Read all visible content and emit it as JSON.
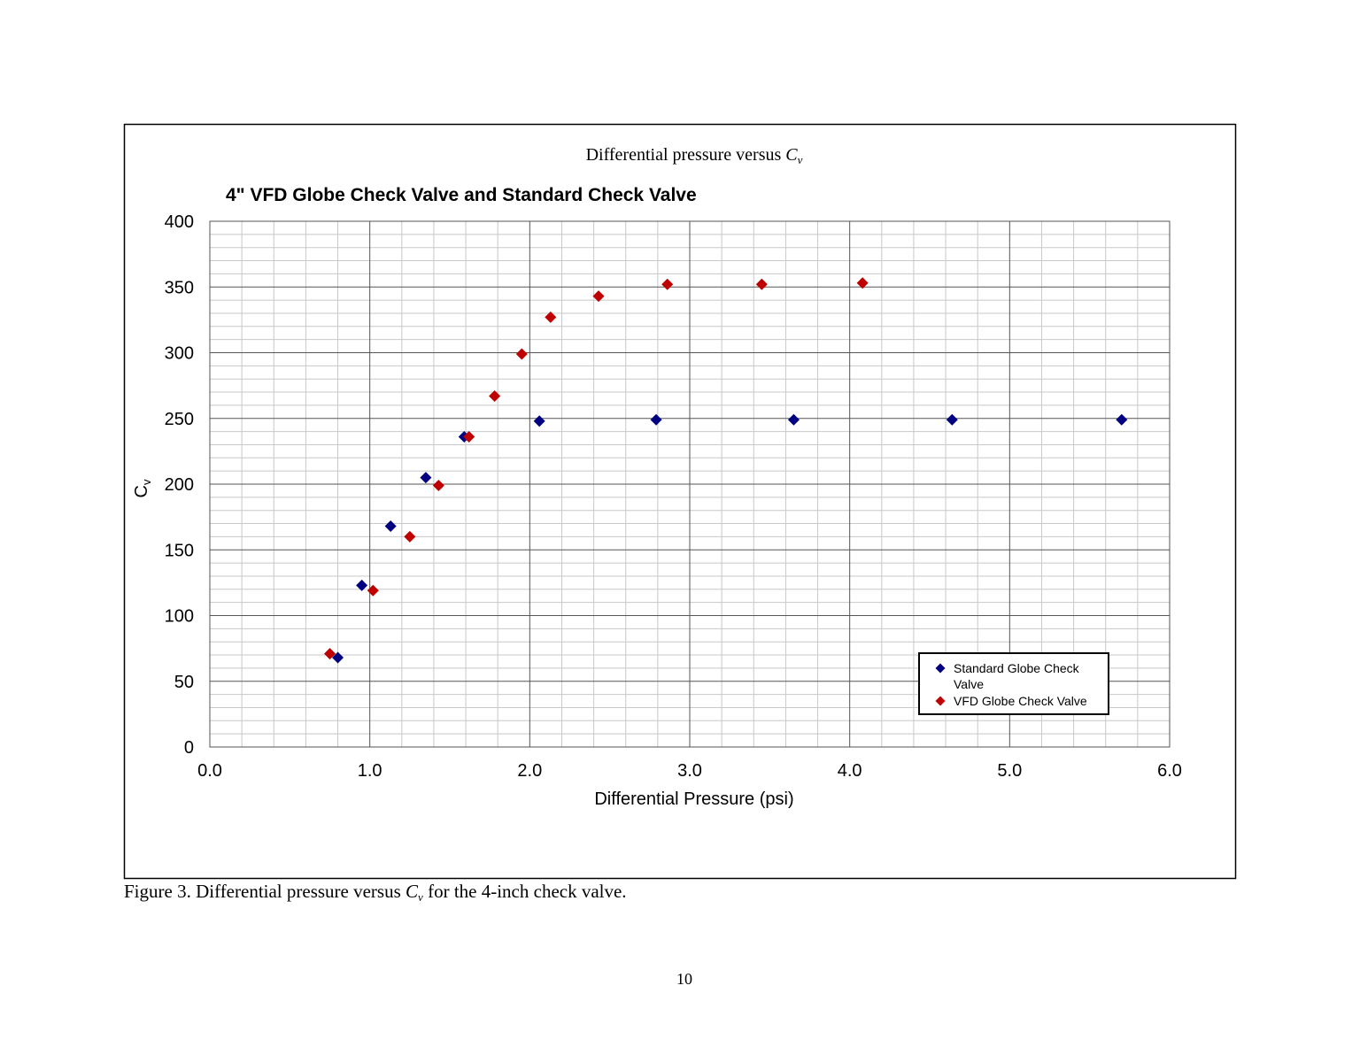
{
  "header": {
    "text": "Differential pressure versus ",
    "symbol": "C",
    "subscript": "v"
  },
  "chart_data": {
    "type": "scatter",
    "title": "4\" VFD Globe Check Valve and Standard Check Valve",
    "xlabel": "Differential Pressure (psi)",
    "ylabel": "C",
    "ylabel_sub": "v",
    "xlim": [
      0,
      6
    ],
    "ylim": [
      0,
      400
    ],
    "xticks": [
      {
        "value": 0,
        "label": "0.0"
      },
      {
        "value": 1,
        "label": "1.0"
      },
      {
        "value": 2,
        "label": "2.0"
      },
      {
        "value": 3,
        "label": "3.0"
      },
      {
        "value": 4,
        "label": "4.0"
      },
      {
        "value": 5,
        "label": "5.0"
      },
      {
        "value": 6,
        "label": "6.0"
      }
    ],
    "yticks": [
      0,
      50,
      100,
      150,
      200,
      250,
      300,
      350,
      400
    ],
    "grid": true,
    "legend": "lower right",
    "series": [
      {
        "name": "Standard Globe Check Valve",
        "color": "#000080",
        "x": [
          0.8,
          0.95,
          1.13,
          1.35,
          1.59,
          2.06,
          2.79,
          3.65,
          4.64,
          5.7
        ],
        "values": [
          68,
          123,
          168,
          205,
          236,
          248,
          249,
          249,
          249,
          249
        ]
      },
      {
        "name": "VFD Globe Check Valve",
        "color": "#c00000",
        "x": [
          0.75,
          1.02,
          1.25,
          1.43,
          1.62,
          1.78,
          1.95,
          2.13,
          2.43,
          2.86,
          3.45,
          4.08
        ],
        "values": [
          71,
          119,
          160,
          199,
          236,
          267,
          299,
          327,
          343,
          352,
          352,
          353
        ]
      }
    ]
  },
  "caption": {
    "text": "Figure 3.  Differential pressure versus ",
    "symbol": "C",
    "subscript": "v",
    "rest": " for the 4-inch check valve."
  },
  "page_number": "10"
}
